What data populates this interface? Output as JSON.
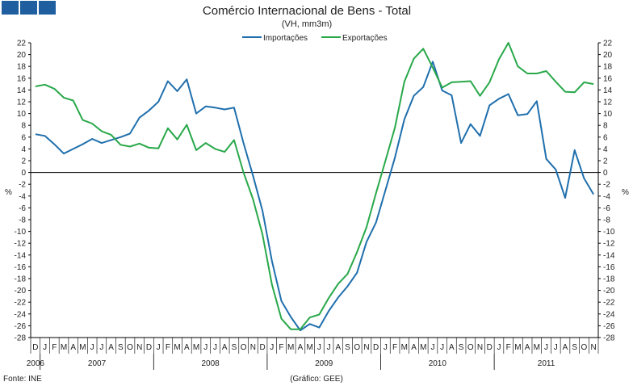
{
  "logo_squares": 3,
  "colors": {
    "importacoes": "#1f6fad",
    "exportacoes": "#29a84a",
    "axis": "#000000",
    "logo": "#1f5f9f",
    "grid": "#999999"
  },
  "chart_data": {
    "type": "line",
    "title": "Comércio Internacional de Bens - Total",
    "subtitle": "(VH, mm3m)",
    "ylabel": "%",
    "ylim": [
      -28,
      22
    ],
    "ytick_step": 2,
    "grid": false,
    "legend_position": "top-center",
    "source": "Fonte: INE",
    "credit": "(Gráfico: GEE)",
    "months": [
      "D",
      "J",
      "F",
      "M",
      "A",
      "M",
      "J",
      "J",
      "A",
      "S",
      "O",
      "N",
      "D",
      "J",
      "F",
      "M",
      "A",
      "M",
      "J",
      "J",
      "A",
      "S",
      "O",
      "N",
      "D",
      "J",
      "F",
      "M",
      "A",
      "M",
      "J",
      "J",
      "A",
      "S",
      "O",
      "N",
      "D",
      "J",
      "F",
      "M",
      "A",
      "M",
      "J",
      "J",
      "A",
      "S",
      "O",
      "N",
      "D",
      "J",
      "F",
      "M",
      "A",
      "M",
      "J",
      "J",
      "A",
      "S",
      "O",
      "N"
    ],
    "years": [
      {
        "label": "2006",
        "start": 0,
        "end": 0
      },
      {
        "label": "2007",
        "start": 1,
        "end": 12
      },
      {
        "label": "2008",
        "start": 13,
        "end": 24
      },
      {
        "label": "2009",
        "start": 25,
        "end": 36
      },
      {
        "label": "2010",
        "start": 37,
        "end": 48
      },
      {
        "label": "2011",
        "start": 49,
        "end": 59
      }
    ],
    "series": [
      {
        "name": "Importações",
        "values": [
          6.5,
          6.2,
          4.8,
          3.2,
          4.0,
          4.8,
          5.7,
          5.0,
          5.5,
          6.0,
          6.6,
          9.3,
          10.5,
          12.0,
          15.5,
          13.8,
          15.8,
          10.0,
          11.2,
          11.0,
          10.7,
          11.0,
          5.0,
          -0.5,
          -6.5,
          -15.0,
          -21.8,
          -24.5,
          -26.8,
          -25.7,
          -26.3,
          -23.5,
          -21.2,
          -19.3,
          -17.0,
          -11.8,
          -8.5,
          -3.0,
          2.5,
          9.0,
          13.0,
          14.5,
          18.8,
          13.9,
          13.1,
          5.0,
          8.2,
          6.2,
          11.4,
          12.5,
          13.3,
          9.7,
          9.9,
          12.1,
          2.3,
          0.5,
          -4.3,
          3.8,
          -1.0,
          -3.7
        ]
      },
      {
        "name": "Exportações",
        "values": [
          14.6,
          14.9,
          14.2,
          12.7,
          12.2,
          8.9,
          8.3,
          7.0,
          6.4,
          4.7,
          4.4,
          4.9,
          4.2,
          4.1,
          7.5,
          5.6,
          8.1,
          3.8,
          5.0,
          4.0,
          3.5,
          5.5,
          0.0,
          -4.5,
          -10.5,
          -19.0,
          -24.8,
          -26.6,
          -26.6,
          -24.6,
          -24.1,
          -21.3,
          -18.9,
          -17.2,
          -13.5,
          -9.3,
          -3.5,
          2.0,
          7.6,
          15.4,
          19.3,
          21.0,
          17.8,
          14.4,
          15.3,
          15.4,
          15.5,
          13.0,
          15.3,
          19.2,
          22.0,
          18.0,
          16.8,
          16.8,
          17.2,
          15.4,
          13.7,
          13.6,
          15.3,
          15.0
        ]
      }
    ]
  }
}
